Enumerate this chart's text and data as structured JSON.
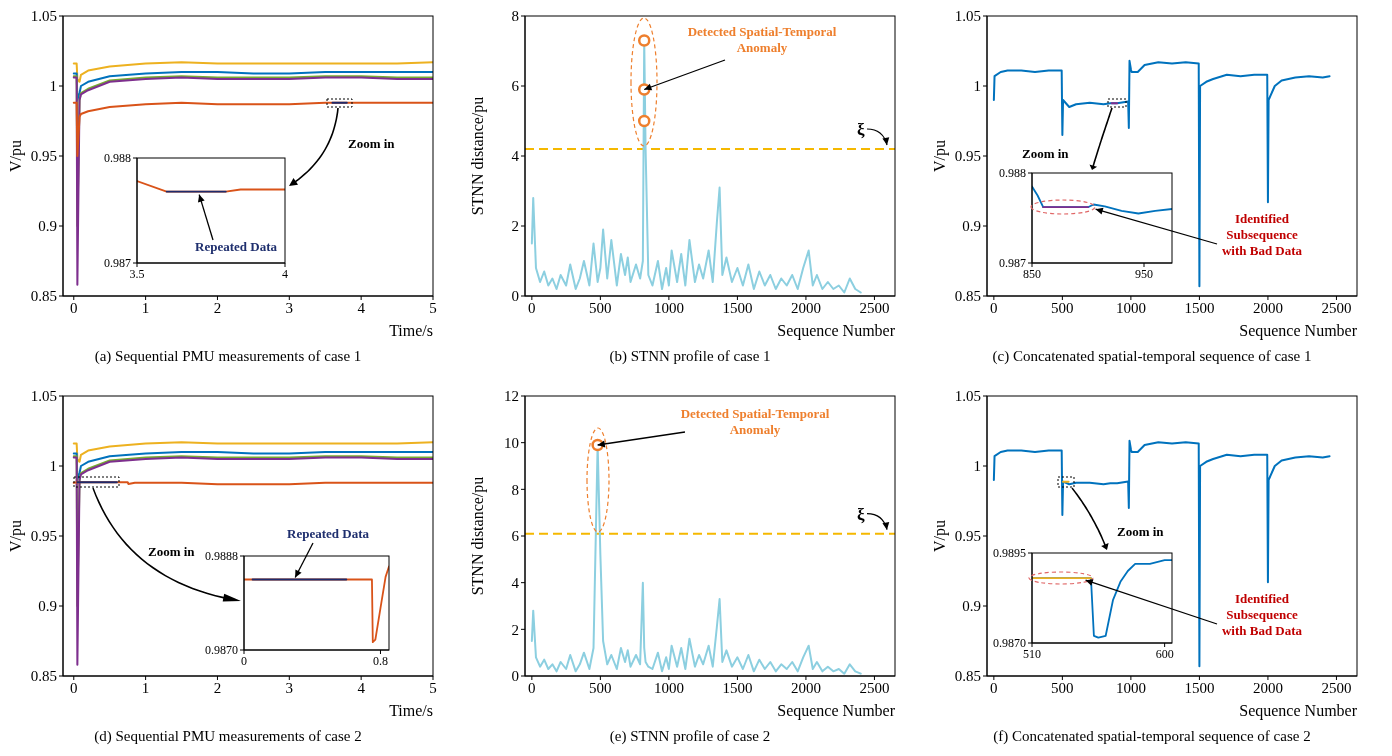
{
  "chart_data": [
    {
      "type": "line",
      "title": "(a) Sequential PMU measurements of case 1",
      "xlabel": "Time/s",
      "ylabel": "V/pu",
      "xlim": [
        -0.15,
        5
      ],
      "ylim": [
        0.85,
        1.05
      ],
      "xticks": [
        0,
        1,
        2,
        3,
        4,
        5
      ],
      "yticks": [
        0.85,
        0.9,
        0.95,
        1,
        1.05
      ],
      "annotations": [
        "Zoom in"
      ],
      "x": [
        0,
        0.04,
        0.05,
        0.08,
        0.1,
        0.2,
        0.5,
        1,
        1.5,
        2,
        2.5,
        3,
        3.5,
        4,
        4.5,
        5
      ],
      "series": [
        {
          "color": "#edb120",
          "values": [
            1.016,
            1.016,
            1.005,
            1.003,
            1.008,
            1.011,
            1.014,
            1.016,
            1.017,
            1.016,
            1.016,
            1.016,
            1.016,
            1.016,
            1.016,
            1.017
          ]
        },
        {
          "color": "#0072bd",
          "values": [
            1.009,
            1.009,
            0.99,
            0.995,
            1.0,
            1.003,
            1.007,
            1.009,
            1.01,
            1.01,
            1.009,
            1.009,
            1.01,
            1.01,
            1.01,
            1.01
          ]
        },
        {
          "color": "#77ac30",
          "values": [
            1.007,
            1.007,
            0.9,
            0.99,
            0.995,
            0.998,
            1.004,
            1.006,
            1.007,
            1.006,
            1.006,
            1.006,
            1.007,
            1.007,
            1.006,
            1.006
          ]
        },
        {
          "color": "#7e2f8e",
          "values": [
            1.006,
            1.006,
            0.858,
            0.99,
            0.994,
            0.997,
            1.003,
            1.005,
            1.006,
            1.005,
            1.005,
            1.005,
            1.006,
            1.006,
            1.005,
            1.005
          ]
        },
        {
          "color": "#d95319",
          "values": [
            0.988,
            0.988,
            0.95,
            0.978,
            0.98,
            0.982,
            0.985,
            0.987,
            0.988,
            0.987,
            0.987,
            0.987,
            0.988,
            0.988,
            0.988,
            0.988
          ]
        },
        {
          "color": "#1f2a6b",
          "x": [
            3.6,
            3.8
          ],
          "values": [
            0.988,
            0.988
          ]
        }
      ]
    },
    {
      "type": "line",
      "xlim": [
        3.5,
        4
      ],
      "ylim": [
        0.987,
        0.988
      ],
      "xticks": [
        3.5,
        4
      ],
      "yticks": [
        0.987,
        0.988
      ],
      "annotations": [
        {
          "text": "Repeated Data",
          "x": 3.7,
          "y": 0.98768
        }
      ],
      "x": [
        3.5,
        3.6,
        3.8,
        3.85,
        4
      ],
      "series": [
        {
          "color": "#d95319",
          "values": [
            0.98778,
            0.98768,
            0.98768,
            0.9877,
            0.9877
          ]
        },
        {
          "color": "#1f2a6b",
          "x": [
            3.6,
            3.8
          ],
          "values": [
            0.98768,
            0.98768
          ]
        }
      ]
    },
    {
      "type": "line",
      "title": "(b) STNN profile of case 1",
      "xlabel": "Sequence Number",
      "ylabel": "STNN distance/pu",
      "xlim": [
        -50,
        2650
      ],
      "ylim": [
        0,
        8
      ],
      "xticks": [
        0,
        500,
        1000,
        1500,
        2000,
        2500
      ],
      "yticks": [
        0,
        2,
        4,
        6,
        8
      ],
      "annotations": [
        {
          "text": "Detected Spatial-Temporal Anomaly",
          "x": 820,
          "y": 5.9
        }
      ],
      "ref_lines": [
        {
          "axis": "y",
          "value": 4.2,
          "label": "ξ",
          "color": "#f5b800",
          "line_style": "dashed"
        }
      ],
      "x": [
        0,
        10,
        30,
        60,
        90,
        120,
        150,
        180,
        210,
        250,
        280,
        320,
        350,
        380,
        420,
        450,
        480,
        500,
        520,
        550,
        580,
        620,
        650,
        680,
        700,
        720,
        760,
        790,
        810,
        820,
        830,
        850,
        880,
        920,
        950,
        980,
        1000,
        1020,
        1060,
        1090,
        1120,
        1150,
        1190,
        1220,
        1250,
        1290,
        1320,
        1350,
        1370,
        1390,
        1420,
        1460,
        1500,
        1540,
        1580,
        1620,
        1660,
        1700,
        1740,
        1780,
        1820,
        1860,
        1900,
        1940,
        1980,
        2020,
        2050,
        2080,
        2120,
        2160,
        2200,
        2240,
        2280,
        2320,
        2360,
        2400
      ],
      "series": [
        {
          "color": "#8ccfe0",
          "values": [
            1.5,
            2.8,
            0.8,
            0.4,
            0.7,
            0.3,
            0.5,
            0.2,
            0.6,
            0.3,
            0.9,
            0.2,
            0.5,
            1.0,
            0.3,
            1.5,
            0.4,
            0.8,
            1.9,
            0.5,
            1.6,
            0.3,
            1.2,
            0.6,
            1.1,
            0.4,
            0.9,
            0.5,
            1.0,
            7.3,
            4.2,
            0.6,
            0.3,
            1.0,
            0.2,
            0.8,
            0.3,
            1.3,
            0.4,
            1.2,
            0.3,
            1.6,
            0.4,
            0.9,
            0.5,
            1.3,
            0.4,
            2.1,
            3.1,
            0.6,
            1.1,
            0.4,
            0.8,
            0.3,
            0.9,
            0.2,
            0.7,
            0.3,
            0.6,
            0.2,
            0.5,
            0.3,
            0.6,
            0.2,
            0.8,
            1.3,
            0.3,
            0.6,
            0.2,
            0.4,
            0.2,
            0.3,
            0.1,
            0.5,
            0.2,
            0.1
          ]
        },
        {
          "type": "scatter",
          "marker": "circle",
          "color": "#ee7f2d",
          "x": [
            820,
            820,
            820
          ],
          "values": [
            5.0,
            5.9,
            7.3
          ]
        }
      ]
    },
    {
      "type": "line",
      "title": "(c) Concatenated spatial-temporal sequence of case 1",
      "xlabel": "Sequence Number",
      "ylabel": "V/pu",
      "xlim": [
        -50,
        2650
      ],
      "ylim": [
        0.85,
        1.05
      ],
      "xticks": [
        0,
        500,
        1000,
        1500,
        2000,
        2500
      ],
      "yticks": [
        0.85,
        0.9,
        0.95,
        1,
        1.05
      ],
      "annotations": [
        "Zoom in"
      ],
      "x": [
        0,
        5,
        50,
        100,
        200,
        300,
        400,
        495,
        500,
        505,
        550,
        600,
        700,
        800,
        850,
        900,
        980,
        985,
        990,
        1000,
        1005,
        1050,
        1100,
        1200,
        1300,
        1400,
        1495,
        1500,
        1505,
        1550,
        1600,
        1700,
        1800,
        1900,
        1995,
        2000,
        2005,
        2050,
        2100,
        2200,
        2300,
        2400,
        2450
      ],
      "series": [
        {
          "color": "#0072bd",
          "values": [
            0.99,
            1.007,
            1.01,
            1.011,
            1.011,
            1.01,
            1.011,
            1.011,
            0.965,
            0.99,
            0.985,
            0.987,
            0.988,
            0.987,
            0.9877,
            0.9877,
            0.989,
            0.97,
            1.018,
            1.012,
            1.01,
            1.01,
            1.015,
            1.017,
            1.016,
            1.017,
            1.016,
            0.857,
            1.0,
            1.003,
            1.005,
            1.008,
            1.007,
            1.008,
            1.008,
            0.917,
            0.99,
            1.0,
            1.004,
            1.006,
            1.007,
            1.006,
            1.007
          ]
        },
        {
          "color": "#7e2f8e",
          "x": [
            860,
            900
          ],
          "values": [
            0.9877,
            0.9877
          ]
        }
      ]
    },
    {
      "type": "line",
      "xlim": [
        850,
        975
      ],
      "ylim": [
        0.987,
        0.988
      ],
      "xticks": [
        850,
        950
      ],
      "yticks": [
        0.987,
        0.988
      ],
      "annotations": [
        {
          "text": "Identified Subsequence with Bad Data",
          "x": 905,
          "y": 0.98762
        }
      ],
      "x": [
        850,
        855,
        860,
        880,
        900,
        905,
        915,
        930,
        945,
        960,
        975
      ],
      "series": [
        {
          "color": "#0072bd",
          "values": [
            0.98785,
            0.98775,
            0.98762,
            0.98762,
            0.98762,
            0.98765,
            0.98763,
            0.98758,
            0.98755,
            0.98758,
            0.9876
          ]
        },
        {
          "color": "#7e2f8e",
          "x": [
            860,
            900
          ],
          "values": [
            0.98762,
            0.98762
          ]
        }
      ]
    },
    {
      "type": "line",
      "title": "(d) Sequential PMU measurements of case 2",
      "xlabel": "Time/s",
      "ylabel": "V/pu",
      "xlim": [
        -0.15,
        5
      ],
      "ylim": [
        0.85,
        1.05
      ],
      "xticks": [
        0,
        1,
        2,
        3,
        4,
        5
      ],
      "yticks": [
        0.85,
        0.9,
        0.95,
        1,
        1.05
      ],
      "annotations": [
        "Zoom in"
      ],
      "x": [
        0,
        0.04,
        0.05,
        0.08,
        0.1,
        0.2,
        0.5,
        1,
        1.5,
        2,
        2.5,
        3,
        3.5,
        4,
        4.5,
        5
      ],
      "series": [
        {
          "color": "#edb120",
          "values": [
            1.016,
            1.016,
            1.005,
            1.003,
            1.008,
            1.011,
            1.014,
            1.016,
            1.017,
            1.016,
            1.016,
            1.016,
            1.016,
            1.016,
            1.016,
            1.017
          ]
        },
        {
          "color": "#0072bd",
          "values": [
            1.009,
            1.009,
            0.99,
            0.995,
            1.0,
            1.003,
            1.007,
            1.009,
            1.01,
            1.01,
            1.009,
            1.009,
            1.01,
            1.01,
            1.01,
            1.01
          ]
        },
        {
          "color": "#77ac30",
          "values": [
            1.007,
            1.007,
            0.9,
            0.99,
            0.995,
            0.998,
            1.004,
            1.006,
            1.007,
            1.006,
            1.006,
            1.006,
            1.007,
            1.007,
            1.006,
            1.006
          ]
        },
        {
          "color": "#7e2f8e",
          "values": [
            1.006,
            1.006,
            0.858,
            0.99,
            0.994,
            0.997,
            1.003,
            1.005,
            1.006,
            1.005,
            1.005,
            1.005,
            1.006,
            1.006,
            1.005,
            1.005
          ]
        },
        {
          "color": "#d95319",
          "x": [
            0,
            0.05,
            0.75,
            0.76,
            0.85,
            1,
            1.5,
            2,
            2.5,
            3,
            3.5,
            4,
            4.5,
            5
          ],
          "values": [
            0.988,
            0.9884,
            0.9884,
            0.9872,
            0.988,
            0.988,
            0.988,
            0.987,
            0.987,
            0.987,
            0.988,
            0.988,
            0.988,
            0.988
          ]
        },
        {
          "color": "#1f2a6b",
          "x": [
            0.05,
            0.6
          ],
          "values": [
            0.9884,
            0.9884
          ]
        }
      ]
    },
    {
      "type": "line",
      "xlim": [
        0,
        0.85
      ],
      "ylim": [
        0.987,
        0.9888
      ],
      "xticks": [
        0,
        0.8
      ],
      "yticks": [
        {
          "value": 0.987,
          "label": "0.9870"
        },
        {
          "value": 0.9888,
          "label": "0.9888"
        }
      ],
      "annotations": [
        {
          "text": "Repeated Data",
          "x": 0.3,
          "y": 0.98835
        }
      ],
      "x": [
        0,
        0.75,
        0.755,
        0.77,
        0.8,
        0.83,
        0.85
      ],
      "series": [
        {
          "color": "#d95319",
          "values": [
            0.98835,
            0.98835,
            0.98715,
            0.9872,
            0.9878,
            0.9884,
            0.9886
          ]
        },
        {
          "color": "#1f2a6b",
          "x": [
            0.05,
            0.6
          ],
          "values": [
            0.98835,
            0.98835
          ]
        }
      ]
    },
    {
      "type": "line",
      "title": "(e) STNN profile of case 2",
      "xlabel": "Sequence Number",
      "ylabel": "STNN distance/pu",
      "xlim": [
        -50,
        2650
      ],
      "ylim": [
        0,
        12
      ],
      "xticks": [
        0,
        500,
        1000,
        1500,
        2000,
        2500
      ],
      "yticks": [
        0,
        2,
        4,
        6,
        8,
        10,
        12
      ],
      "annotations": [
        {
          "text": "Detected Spatial-Temporal Anomaly",
          "x": 480,
          "y": 9.9
        }
      ],
      "ref_lines": [
        {
          "axis": "y",
          "value": 6.1,
          "label": "ξ",
          "color": "#f5b800",
          "line_style": "dashed"
        }
      ],
      "x": [
        0,
        10,
        30,
        60,
        90,
        120,
        150,
        180,
        210,
        250,
        280,
        320,
        350,
        380,
        420,
        450,
        480,
        500,
        520,
        550,
        580,
        620,
        650,
        680,
        700,
        720,
        760,
        790,
        810,
        820,
        830,
        850,
        880,
        920,
        950,
        980,
        1000,
        1020,
        1060,
        1090,
        1120,
        1150,
        1190,
        1220,
        1250,
        1290,
        1320,
        1350,
        1370,
        1390,
        1420,
        1460,
        1500,
        1540,
        1580,
        1620,
        1660,
        1700,
        1740,
        1780,
        1820,
        1860,
        1900,
        1940,
        1980,
        2020,
        2050,
        2080,
        2120,
        2160,
        2200,
        2240,
        2280,
        2320,
        2360,
        2400
      ],
      "series": [
        {
          "color": "#8ccfe0",
          "values": [
            1.5,
            2.8,
            0.8,
            0.4,
            0.7,
            0.3,
            0.5,
            0.2,
            0.6,
            0.3,
            0.9,
            0.2,
            0.5,
            1.0,
            0.3,
            1.2,
            9.9,
            5.2,
            1.5,
            0.5,
            0.9,
            0.3,
            1.2,
            0.6,
            1.1,
            0.4,
            0.9,
            0.5,
            4.0,
            1.2,
            0.6,
            0.4,
            0.3,
            1.0,
            0.2,
            0.8,
            0.3,
            1.3,
            0.4,
            1.2,
            0.3,
            1.6,
            0.4,
            0.9,
            0.5,
            1.3,
            0.4,
            2.1,
            3.3,
            0.6,
            1.1,
            0.4,
            0.8,
            0.3,
            0.9,
            0.2,
            0.7,
            0.3,
            0.6,
            0.2,
            0.5,
            0.3,
            0.6,
            0.2,
            0.8,
            1.3,
            0.3,
            0.6,
            0.2,
            0.4,
            0.2,
            0.3,
            0.1,
            0.5,
            0.2,
            0.1
          ]
        },
        {
          "type": "scatter",
          "marker": "circle",
          "color": "#ee7f2d",
          "x": [
            480
          ],
          "values": [
            9.9
          ]
        }
      ]
    },
    {
      "type": "line",
      "title": "(f) Concatenated spatial-temporal sequence of case 2",
      "xlabel": "Sequence Number",
      "ylabel": "V/pu",
      "xlim": [
        -50,
        2650
      ],
      "ylim": [
        0.85,
        1.05
      ],
      "xticks": [
        0,
        500,
        1000,
        1500,
        2000,
        2500
      ],
      "yticks": [
        0.85,
        0.9,
        0.95,
        1,
        1.05
      ],
      "annotations": [
        "Zoom in"
      ],
      "x": [
        0,
        5,
        50,
        100,
        200,
        300,
        400,
        495,
        500,
        505,
        550,
        600,
        700,
        800,
        850,
        900,
        980,
        985,
        990,
        1000,
        1005,
        1050,
        1100,
        1200,
        1300,
        1400,
        1495,
        1500,
        1505,
        1550,
        1600,
        1700,
        1800,
        1900,
        1995,
        2000,
        2005,
        2050,
        2100,
        2200,
        2300,
        2400,
        2450
      ],
      "series": [
        {
          "color": "#0072bd",
          "values": [
            0.99,
            1.007,
            1.01,
            1.011,
            1.011,
            1.01,
            1.011,
            1.011,
            0.965,
            0.9888,
            0.987,
            0.988,
            0.988,
            0.987,
            0.9877,
            0.9877,
            0.989,
            0.97,
            1.018,
            1.012,
            1.01,
            1.01,
            1.015,
            1.017,
            1.016,
            1.017,
            1.016,
            0.857,
            1.0,
            1.003,
            1.005,
            1.008,
            1.007,
            1.008,
            1.008,
            0.917,
            0.99,
            1.0,
            1.004,
            1.006,
            1.007,
            1.006,
            1.007
          ]
        },
        {
          "color": "#edb120",
          "x": [
            505,
            545
          ],
          "values": [
            0.9888,
            0.9888
          ]
        }
      ]
    },
    {
      "type": "line",
      "xlim": [
        510,
        605
      ],
      "ylim": [
        0.987,
        0.9895
      ],
      "xticks": [
        510,
        600
      ],
      "yticks": [
        {
          "value": 0.987,
          "label": "0.9870"
        },
        {
          "value": 0.9895,
          "label": "0.9895"
        }
      ],
      "annotations": [
        {
          "text": "Identified Subsequence with Bad Data",
          "x": 545,
          "y": 0.9888
        }
      ],
      "x": [
        510,
        550,
        552,
        555,
        560,
        565,
        570,
        575,
        580,
        590,
        600,
        605
      ],
      "series": [
        {
          "color": "#0072bd",
          "values": [
            0.9888,
            0.9888,
            0.9872,
            0.98715,
            0.9872,
            0.9882,
            0.9887,
            0.989,
            0.9892,
            0.9892,
            0.9893,
            0.9893
          ]
        },
        {
          "color": "#edb120",
          "x": [
            510,
            550
          ],
          "values": [
            0.9888,
            0.9888
          ]
        }
      ]
    }
  ]
}
